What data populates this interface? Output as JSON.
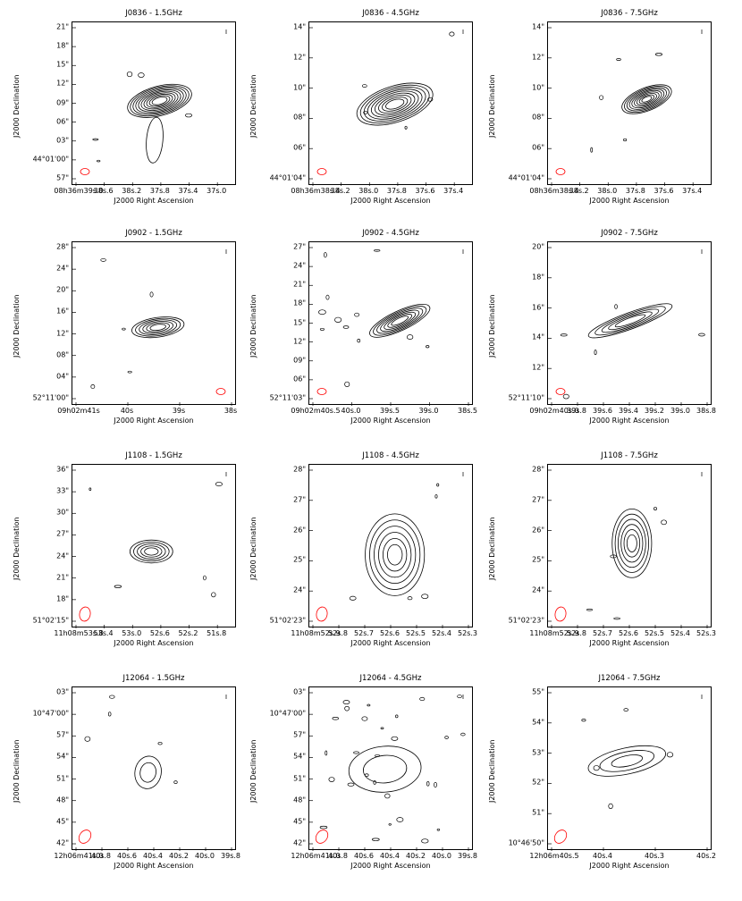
{
  "figure": {
    "ylabel": "J2000 Declination",
    "xlabel": "J2000 Right Ascension",
    "contour_color": "#000000",
    "beam_color": "#ff0000"
  },
  "panels": [
    {
      "title": "J0836 - 1.5GHz",
      "yticks": [
        "21\"",
        "18\"",
        "15\"",
        "12\"",
        "09\"",
        "06\"",
        "03\"",
        "44°01'00\"",
        "57\""
      ],
      "xticks": [
        "08h36m39s.0",
        "38s.8",
        "38s.6",
        "38s.4",
        "38s.2",
        "38s.0",
        "37s.8",
        "37s.6",
        "37s.4",
        "37s.2",
        "37s.0",
        "36s.8"
      ]
    },
    {
      "title": "J0836 - 4.5GHz",
      "yticks": [
        "14\"",
        "12\"",
        "10\"",
        "08\"",
        "06\"",
        "44°01'04\""
      ],
      "xticks": [
        "08h36m38s.4",
        "38s.3",
        "38s.2",
        "38s.1",
        "38s.0",
        "37s.9",
        "37s.8",
        "37s.7",
        "37s.6",
        "37s.5",
        "37s.4",
        "37s.3"
      ]
    },
    {
      "title": "J0836 - 7.5GHz",
      "yticks": [
        "14\"",
        "12\"",
        "10\"",
        "08\"",
        "06\"",
        "44°01'04\""
      ],
      "xticks": [
        "08h36m38s.4",
        "38s.3",
        "38s.2",
        "38s.1",
        "38s.0",
        "37s.9",
        "37s.8",
        "37s.7",
        "37s.6",
        "37s.5",
        "37s.4",
        "37s.3"
      ]
    },
    {
      "title": "J0902 - 1.5GHz",
      "yticks": [
        "28\"",
        "24\"",
        "20\"",
        "16\"",
        "12\"",
        "08\"",
        "04\"",
        "52°11'00\""
      ],
      "xticks": [
        "09h02m41s",
        "40s",
        "39s",
        "38s"
      ]
    },
    {
      "title": "J0902 - 4.5GHz",
      "yticks": [
        "27\"",
        "24\"",
        "21\"",
        "18\"",
        "15\"",
        "12\"",
        "09\"",
        "06\"",
        "52°11'03\""
      ],
      "xticks": [
        "09h02m40s.5",
        "40s.0",
        "39s.5",
        "39s.0",
        "38s.5"
      ]
    },
    {
      "title": "J0902 - 7.5GHz",
      "yticks": [
        "20\"",
        "18\"",
        "16\"",
        "14\"",
        "12\"",
        "52°11'10\""
      ],
      "xticks": [
        "09h02m40s.0",
        "39s.8",
        "39s.6",
        "39s.4",
        "39s.2",
        "39s.0",
        "38s.8"
      ]
    },
    {
      "title": "J1108 - 1.5GHz",
      "yticks": [
        "36\"",
        "33\"",
        "30\"",
        "27\"",
        "24\"",
        "21\"",
        "18\"",
        "51°02'15\""
      ],
      "xticks": [
        "11h08m53s.8",
        "53s.6",
        "53s.4",
        "53s.2",
        "53s.0",
        "52s.8",
        "52s.6",
        "52s.4",
        "52s.2",
        "52s.0",
        "51s.8",
        "51s.6"
      ]
    },
    {
      "title": "J1108 - 4.5GHz",
      "yticks": [
        "28\"",
        "27\"",
        "26\"",
        "25\"",
        "24\"",
        "51°02'23\""
      ],
      "xticks": [
        "11h08m52s.9",
        "52s.8",
        "52s.7",
        "52s.6",
        "52s.5",
        "52s.4",
        "52s.3"
      ]
    },
    {
      "title": "J1108 - 7.5GHz",
      "yticks": [
        "28\"",
        "27\"",
        "26\"",
        "25\"",
        "24\"",
        "51°02'23\""
      ],
      "xticks": [
        "11h08m52s.9",
        "52s.8",
        "52s.7",
        "52s.6",
        "52s.5",
        "52s.4",
        "52s.3"
      ]
    },
    {
      "title": "J12064 - 1.5GHz",
      "yticks": [
        "03\"",
        "10°47'00\"",
        "57\"",
        "54\"",
        "51\"",
        "48\"",
        "45\"",
        "42\""
      ],
      "xticks": [
        "12h06m41s.0",
        "40s.8",
        "40s.6",
        "40s.4",
        "40s.2",
        "40s.0",
        "39s.8"
      ]
    },
    {
      "title": "J12064 - 4.5GHz",
      "yticks": [
        "03\"",
        "10°47'00\"",
        "57\"",
        "54\"",
        "51\"",
        "48\"",
        "45\"",
        "42\""
      ],
      "xticks": [
        "12h06m41s.0",
        "40s.8",
        "40s.6",
        "40s.4",
        "40s.2",
        "40s.0",
        "39s.8"
      ]
    },
    {
      "title": "J12064 - 7.5GHz",
      "yticks": [
        "55\"",
        "54\"",
        "53\"",
        "52\"",
        "51\"",
        "10°46'50\""
      ],
      "xticks": [
        "12h06m40s.5",
        "40s.4",
        "40s.3",
        "40s.2"
      ]
    }
  ]
}
